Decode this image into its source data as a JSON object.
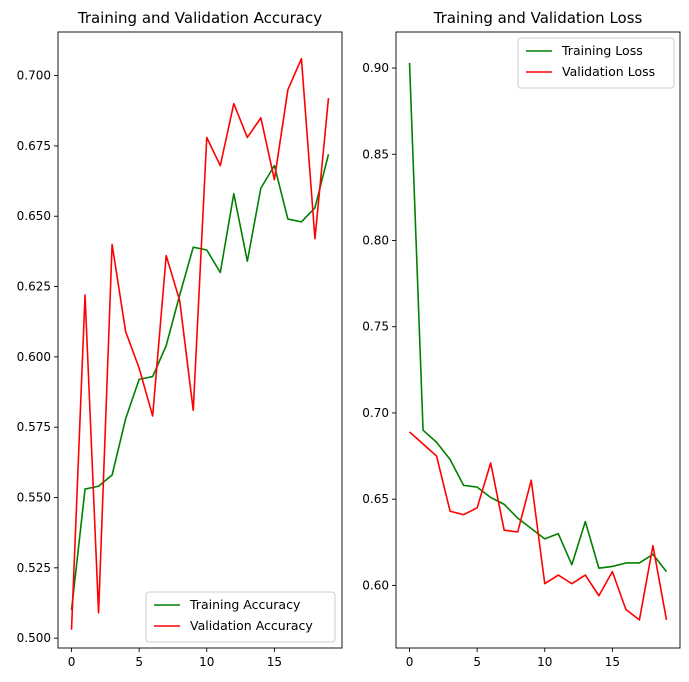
{
  "chart_data": [
    {
      "type": "line",
      "title": "Training and Validation Accuracy",
      "xlabel": "",
      "ylabel": "",
      "xlim": [
        -1,
        20
      ],
      "ylim": [
        0.4965,
        0.7155
      ],
      "xticks": [
        0,
        5,
        10,
        15
      ],
      "yticks": [
        0.5,
        0.525,
        0.55,
        0.575,
        0.6,
        0.625,
        0.65,
        0.675,
        0.7
      ],
      "ytick_decimals": 3,
      "grid": false,
      "legend_position": "lower-right",
      "x": [
        0,
        1,
        2,
        3,
        4,
        5,
        6,
        7,
        8,
        9,
        10,
        11,
        12,
        13,
        14,
        15,
        16,
        17,
        18,
        19
      ],
      "series": [
        {
          "name": "Training Accuracy",
          "color": "#008000",
          "values": [
            0.51,
            0.553,
            0.554,
            0.558,
            0.578,
            0.592,
            0.593,
            0.604,
            0.622,
            0.639,
            0.638,
            0.63,
            0.658,
            0.634,
            0.66,
            0.668,
            0.649,
            0.648,
            0.653,
            0.672
          ]
        },
        {
          "name": "Validation Accuracy",
          "color": "#ff0000",
          "values": [
            0.503,
            0.622,
            0.509,
            0.64,
            0.609,
            0.596,
            0.579,
            0.636,
            0.62,
            0.581,
            0.678,
            0.668,
            0.69,
            0.678,
            0.685,
            0.663,
            0.695,
            0.706,
            0.642,
            0.692
          ]
        }
      ]
    },
    {
      "type": "line",
      "title": "Training and Validation Loss",
      "xlabel": "",
      "ylabel": "",
      "xlim": [
        -1,
        20
      ],
      "ylim": [
        0.5637,
        0.9209
      ],
      "xticks": [
        0,
        5,
        10,
        15
      ],
      "yticks": [
        0.6,
        0.65,
        0.7,
        0.75,
        0.8,
        0.85,
        0.9
      ],
      "ytick_decimals": 2,
      "grid": false,
      "legend_position": "upper-right",
      "x": [
        0,
        1,
        2,
        3,
        4,
        5,
        6,
        7,
        8,
        9,
        10,
        11,
        12,
        13,
        14,
        15,
        16,
        17,
        18,
        19
      ],
      "series": [
        {
          "name": "Training Loss",
          "color": "#008000",
          "values": [
            0.903,
            0.69,
            0.683,
            0.673,
            0.658,
            0.657,
            0.651,
            0.647,
            0.639,
            0.633,
            0.627,
            0.63,
            0.612,
            0.637,
            0.61,
            0.611,
            0.613,
            0.613,
            0.618,
            0.608
          ]
        },
        {
          "name": "Validation Loss",
          "color": "#ff0000",
          "values": [
            0.689,
            0.682,
            0.675,
            0.643,
            0.641,
            0.645,
            0.671,
            0.632,
            0.631,
            0.661,
            0.601,
            0.606,
            0.601,
            0.606,
            0.594,
            0.608,
            0.586,
            0.58,
            0.623,
            0.58
          ]
        }
      ]
    }
  ]
}
